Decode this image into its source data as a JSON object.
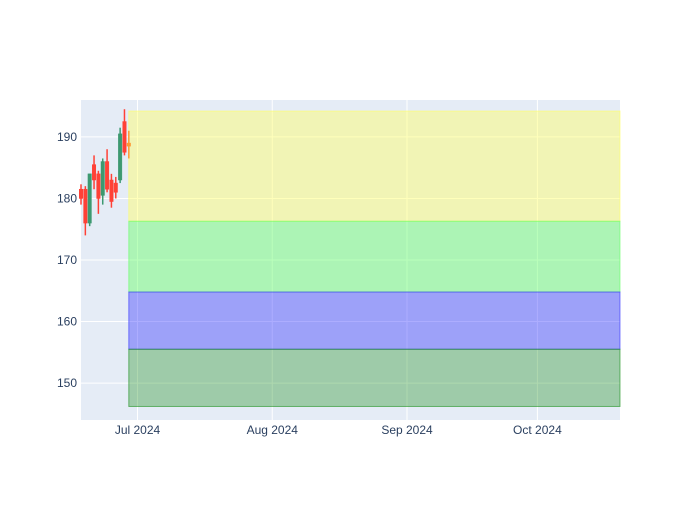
{
  "chart_data": {
    "type": "candlestick",
    "title": "",
    "xlabel": "",
    "ylabel": "",
    "ylim": [
      144,
      196
    ],
    "xlim": [
      "2024-06-18",
      "2024-10-20"
    ],
    "grid": true,
    "x_ticks": [
      {
        "date": "2024-07-01",
        "label": "Jul 2024"
      },
      {
        "date": "2024-08-01",
        "label": "Aug 2024"
      },
      {
        "date": "2024-09-01",
        "label": "Sep 2024"
      },
      {
        "date": "2024-10-01",
        "label": "Oct 2024"
      }
    ],
    "y_ticks": [
      150,
      160,
      170,
      180,
      190
    ],
    "candles": [
      {
        "date": "2024-06-18",
        "open": 181.5,
        "high": 182.3,
        "low": 179.0,
        "close": 180.0
      },
      {
        "date": "2024-06-19",
        "open": 181.5,
        "high": 182.0,
        "low": 174.0,
        "close": 176.0
      },
      {
        "date": "2024-06-20",
        "open": 176.0,
        "high": 184.0,
        "low": 175.5,
        "close": 184.0
      },
      {
        "date": "2024-06-21",
        "open": 185.5,
        "high": 187.0,
        "low": 181.5,
        "close": 183.0
      },
      {
        "date": "2024-06-22",
        "open": 184.0,
        "high": 184.5,
        "low": 177.5,
        "close": 180.0
      },
      {
        "date": "2024-06-23",
        "open": 180.5,
        "high": 186.5,
        "low": 179.0,
        "close": 186.0
      },
      {
        "date": "2024-06-24",
        "open": 186.0,
        "high": 188.0,
        "low": 181.0,
        "close": 181.5
      },
      {
        "date": "2024-06-25",
        "open": 183.0,
        "high": 184.0,
        "low": 178.5,
        "close": 179.5
      },
      {
        "date": "2024-06-26",
        "open": 182.5,
        "high": 183.5,
        "low": 180.0,
        "close": 181.0
      },
      {
        "date": "2024-06-27",
        "open": 183.0,
        "high": 191.5,
        "low": 182.5,
        "close": 190.5
      },
      {
        "date": "2024-06-28",
        "open": 192.5,
        "high": 194.5,
        "low": 187.0,
        "close": 187.5
      }
    ],
    "forecast": {
      "date": "2024-06-29",
      "open": 188.5,
      "high": 191.0,
      "low": 186.5,
      "close": 189.0,
      "color": "#ff9933"
    },
    "bands": [
      {
        "from": 176.3,
        "to": 194.2,
        "color": "#ffff66",
        "opacity": 0.45
      },
      {
        "from": 164.8,
        "to": 176.3,
        "color": "#66ff66",
        "opacity": 0.45
      },
      {
        "from": 155.5,
        "to": 164.8,
        "color": "#3333ff",
        "opacity": 0.4
      },
      {
        "from": 146.2,
        "to": 155.5,
        "color": "#1a8f1a",
        "opacity": 0.35
      }
    ],
    "band_start": "2024-06-29",
    "band_end": "2024-10-20",
    "colors": {
      "increasing": "#3d9970",
      "decreasing": "#ff4136",
      "plot_bg": "#e5ecf6",
      "grid": "#ffffff",
      "tick_text": "#2a3f5f"
    }
  }
}
